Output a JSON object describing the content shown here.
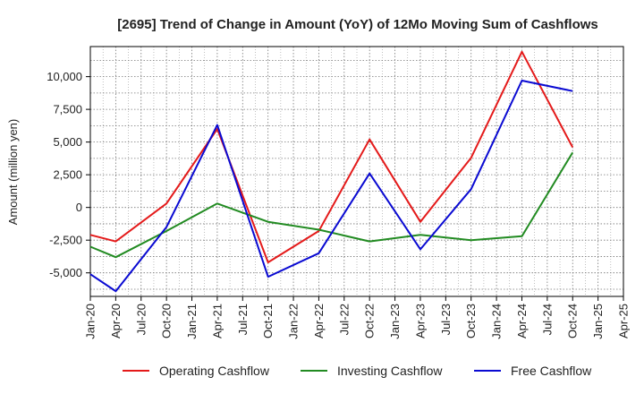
{
  "chart_data": {
    "type": "line",
    "title": "[2695]  Trend of Change in Amount (YoY) of 12Mo Moving Sum of Cashflows",
    "xlabel": "",
    "ylabel": "Amount (million yen)",
    "ylim": [
      -6800,
      12300
    ],
    "yticks": [
      -5000,
      -2500,
      0,
      2500,
      5000,
      7500,
      10000
    ],
    "ytick_labels": [
      "-5,000",
      "-2,500",
      "0",
      "2,500",
      "5,000",
      "7,500",
      "10,000"
    ],
    "categories": [
      "Jan-20",
      "Apr-20",
      "Jul-20",
      "Oct-20",
      "Jan-21",
      "Apr-21",
      "Jul-21",
      "Oct-21",
      "Jan-22",
      "Apr-22",
      "Jul-22",
      "Oct-22",
      "Jan-23",
      "Apr-23",
      "Jul-23",
      "Oct-23",
      "Jan-24",
      "Apr-24",
      "Jul-24",
      "Oct-24",
      "Jan-25",
      "Apr-25"
    ],
    "grid": true,
    "legend_position": "bottom",
    "series": [
      {
        "name": "Operating Cashflow",
        "color": "#e41a1a",
        "values": [
          -2100,
          -2600,
          null,
          300,
          null,
          6000,
          null,
          -4200,
          null,
          -1800,
          null,
          5200,
          null,
          -1100,
          null,
          3800,
          null,
          11900,
          null,
          4600,
          null,
          null
        ]
      },
      {
        "name": "Investing Cashflow",
        "color": "#228b22",
        "values": [
          -3000,
          -3800,
          null,
          -1800,
          null,
          300,
          null,
          -1100,
          null,
          -1700,
          null,
          -2600,
          null,
          -2100,
          null,
          -2500,
          null,
          -2200,
          null,
          4200,
          null,
          null
        ]
      },
      {
        "name": "Free Cashflow",
        "color": "#0a0ad2",
        "values": [
          -5100,
          -6400,
          null,
          -1500,
          null,
          6300,
          null,
          -5300,
          null,
          -3500,
          null,
          2600,
          null,
          -3200,
          null,
          1400,
          null,
          9700,
          null,
          8900,
          null,
          null
        ]
      }
    ]
  }
}
